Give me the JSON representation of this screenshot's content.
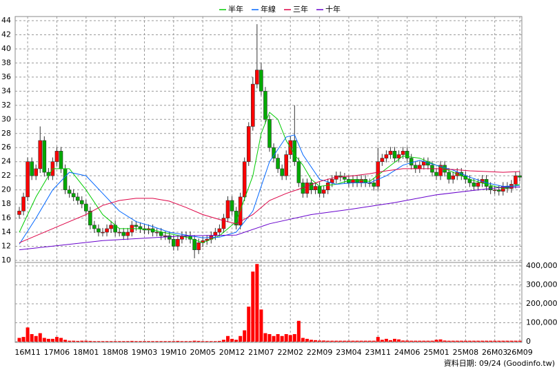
{
  "chart_data": {
    "type": "candlestick",
    "categories": [
      null,
      null,
      "16M11",
      null,
      null,
      null,
      null,
      null,
      null,
      "17M06",
      null,
      null,
      null,
      null,
      null,
      null,
      "18M01",
      null,
      null,
      null,
      null,
      null,
      null,
      "18M08",
      null,
      null,
      null,
      null,
      null,
      null,
      "19M03",
      null,
      null,
      null,
      null,
      null,
      null,
      "19M10",
      null,
      null,
      null,
      null,
      null,
      null,
      "20M05",
      null,
      null,
      null,
      null,
      null,
      null,
      "20M12",
      null,
      null,
      null,
      null,
      null,
      null,
      "21M07",
      null,
      null,
      null,
      null,
      null,
      null,
      "22M02",
      null,
      null,
      null,
      null,
      null,
      null,
      "22M09",
      null,
      null,
      null,
      null,
      null,
      null,
      "23M04",
      null,
      null,
      null,
      null,
      null,
      null,
      "23M11",
      null,
      null,
      null,
      null,
      null,
      null,
      "24M06",
      null,
      null,
      null,
      null,
      null,
      null,
      "25M01",
      null,
      null,
      null,
      null,
      null,
      null,
      "25M08",
      null,
      null,
      null,
      null,
      null,
      null,
      "26M03",
      null,
      null,
      null,
      null,
      null,
      "26M09"
    ],
    "open": [
      16.5,
      17,
      19,
      24,
      22,
      23,
      27,
      22.5,
      22,
      24,
      25.5,
      23,
      20,
      19.5,
      19,
      18.5,
      18,
      17,
      15,
      14.5,
      14,
      14,
      14.5,
      15,
      14,
      14,
      13.5,
      14,
      15,
      14.8,
      14.5,
      14.3,
      14.5,
      14,
      14,
      13.5,
      13.5,
      13,
      12,
      13,
      13.5,
      13.5,
      13,
      11.5,
      12.5,
      12.8,
      13,
      13.5,
      14,
      14.5,
      16,
      18.5,
      17,
      15,
      19,
      24,
      29,
      35,
      37,
      34,
      30,
      26,
      24.5,
      23,
      22,
      25,
      27,
      24,
      21,
      19.5,
      21,
      20,
      20.5,
      19.5,
      20,
      21,
      21.5,
      22,
      21.8,
      21.5,
      21,
      21.5,
      21,
      21.5,
      21,
      21,
      20.5,
      24,
      24.5,
      25,
      25.5,
      24.5,
      25,
      25.5,
      24.5,
      23.5,
      23,
      23.5,
      24,
      23.5,
      22.5,
      22,
      23.5,
      22.5,
      21.5,
      22,
      22.5,
      22,
      21.5,
      21,
      20.5,
      21,
      21.5,
      20.5,
      20,
      20,
      19.8,
      20.5,
      20.2,
      20.8,
      22
    ],
    "high": [
      17.6,
      19.6,
      24.6,
      24.6,
      23.6,
      29,
      27.6,
      23.1,
      24.6,
      26.1,
      26.1,
      23.6,
      20.6,
      20.1,
      19.6,
      19.1,
      18.6,
      17.6,
      15.6,
      15.1,
      14.6,
      15.1,
      15.6,
      15.6,
      14.6,
      14.6,
      14.6,
      15.6,
      15.6,
      15.4,
      15.1,
      15.1,
      15.1,
      14.6,
      14.6,
      14.1,
      14.1,
      13.6,
      13.6,
      14.1,
      14.1,
      14.1,
      13.6,
      13.1,
      13.4,
      13.6,
      14.1,
      14.6,
      15.1,
      16.6,
      19.1,
      19.1,
      17.6,
      19.6,
      24.6,
      29.6,
      36,
      43.5,
      38,
      34.6,
      30.6,
      26.6,
      25.1,
      23.6,
      25.6,
      27.6,
      32,
      24.6,
      21.6,
      21.6,
      21.6,
      21.1,
      21.1,
      20.6,
      21.6,
      22.1,
      22.6,
      22.6,
      22.4,
      22.1,
      22.1,
      22.1,
      22.1,
      22.1,
      21.6,
      21.6,
      26,
      25.1,
      25.6,
      26.1,
      26.1,
      25.6,
      26.1,
      26.1,
      25.1,
      24.1,
      24.1,
      24.6,
      24.6,
      24.1,
      23.1,
      24.1,
      24.1,
      23.1,
      22.6,
      23.1,
      23.1,
      22.6,
      22.1,
      21.6,
      21.6,
      22.1,
      22.1,
      21.1,
      20.6,
      20.6,
      21.1,
      21.1,
      21.4,
      22.6,
      22.6
    ],
    "low": [
      15.9,
      16.4,
      18.4,
      21.4,
      21.4,
      22.4,
      21.9,
      21.4,
      21.4,
      23.4,
      22.4,
      19.4,
      18.9,
      18.4,
      17.9,
      17.4,
      16.4,
      14.4,
      13.9,
      13.4,
      13.4,
      13.4,
      13.9,
      13.4,
      13.4,
      12.9,
      12.9,
      13.4,
      14.2,
      13.9,
      13.7,
      13.7,
      13.4,
      13.4,
      12.9,
      12.9,
      12.4,
      11.4,
      11.4,
      12.4,
      12.9,
      12.4,
      10.3,
      10.9,
      11.9,
      12.2,
      12.4,
      12.9,
      13.4,
      13.9,
      15.4,
      16.4,
      14.4,
      14.4,
      18.4,
      23.4,
      28.4,
      34.4,
      33.4,
      29.4,
      25.4,
      23.9,
      22.4,
      21.4,
      21.4,
      24.4,
      23.4,
      20.4,
      18.9,
      18.9,
      19.4,
      19.4,
      18.9,
      18.9,
      19.4,
      20.4,
      20.9,
      21.2,
      20.9,
      20.4,
      20.4,
      20.4,
      20.4,
      20.4,
      20.4,
      19.9,
      19.9,
      23.4,
      23.9,
      24.4,
      23.9,
      23.9,
      24.4,
      23.9,
      22.9,
      22.4,
      22.4,
      22.9,
      22.9,
      21.9,
      21.4,
      21.4,
      21.9,
      20.9,
      20.9,
      21.4,
      21.4,
      20.9,
      20.4,
      19.9,
      19.9,
      20.4,
      19.9,
      19.4,
      19.4,
      19.2,
      19.2,
      19.6,
      19.6,
      20.2,
      21.2
    ],
    "close": [
      17,
      19,
      24,
      22,
      23,
      27,
      22.5,
      22,
      24,
      25.5,
      23,
      20,
      19.5,
      19,
      18.5,
      18,
      17,
      15,
      14.5,
      14,
      14,
      14.5,
      15,
      14,
      14,
      13.5,
      14,
      15,
      14.8,
      14.5,
      14.3,
      14.5,
      14,
      14,
      13.5,
      13.5,
      13,
      12,
      13,
      13.5,
      13.5,
      13,
      11.5,
      12.5,
      12.8,
      13,
      13.5,
      14,
      14.5,
      16,
      18.5,
      17,
      15,
      19,
      24,
      29,
      35,
      37,
      34,
      30,
      26,
      24.5,
      23,
      22,
      25,
      27,
      24,
      21,
      19.5,
      21,
      20,
      20.5,
      19.5,
      20,
      21,
      21.5,
      22,
      21.8,
      21.5,
      21,
      21.5,
      21,
      21.5,
      21,
      21,
      20.5,
      24,
      24.5,
      25,
      25.5,
      24.5,
      25,
      25.5,
      24.5,
      23.5,
      23,
      23.5,
      24,
      23.5,
      22.5,
      22,
      23.5,
      22.5,
      21.5,
      22,
      22.5,
      22,
      21.5,
      21,
      20.5,
      21,
      21.5,
      20.5,
      20,
      20,
      19.8,
      20.5,
      20.2,
      20.8,
      22,
      21.8
    ],
    "up_color": "#ff0000",
    "down_color": "#00aa00",
    "ylim": [
      10,
      44
    ],
    "yticks": [
      10,
      12,
      14,
      16,
      18,
      20,
      22,
      24,
      26,
      28,
      30,
      32,
      34,
      36,
      38,
      40,
      42,
      44
    ],
    "volume": {
      "color": "#ff0000",
      "axis": "y2",
      "values": [
        20000,
        25000,
        75000,
        40000,
        30000,
        45000,
        20000,
        15000,
        15000,
        25000,
        20000,
        10000,
        5000,
        5000,
        4000,
        5000,
        5000,
        4000,
        3000,
        3000,
        3000,
        3000,
        3000,
        3000,
        3000,
        3000,
        3000,
        4000,
        3000,
        3000,
        3000,
        3000,
        3000,
        3000,
        3000,
        3000,
        3000,
        3000,
        4000,
        3000,
        3000,
        3000,
        5000,
        4000,
        3000,
        3000,
        3000,
        3000,
        4000,
        10000,
        30000,
        15000,
        10000,
        30000,
        60000,
        185000,
        370000,
        410000,
        170000,
        45000,
        40000,
        30000,
        40000,
        30000,
        40000,
        35000,
        40000,
        110000,
        20000,
        15000,
        10000,
        8000,
        6000,
        6000,
        5000,
        5000,
        5000,
        5000,
        5000,
        5000,
        5000,
        5000,
        5000,
        5000,
        5000,
        5000,
        25000,
        10000,
        15000,
        8000,
        15000,
        12000,
        6000,
        6000,
        5000,
        5000,
        5000,
        5000,
        5000,
        5000,
        10000,
        12000,
        6000,
        5000,
        5000,
        5000,
        5000,
        5000,
        5000,
        5000,
        5000,
        5000,
        5000,
        5000,
        5000,
        5000,
        5000,
        5000,
        5000,
        5000,
        5000
      ]
    },
    "y2lim": [
      0,
      400000
    ],
    "y2ticks": [
      0,
      {
        "value": 100000,
        "label": "100,000"
      },
      {
        "value": 200000,
        "label": "200,000"
      },
      {
        "value": 300000,
        "label": "300,000"
      },
      {
        "value": 400000,
        "label": "400,000"
      }
    ],
    "series": [
      {
        "name": "半年",
        "color": "#00cc00",
        "x": [
          0,
          4,
          8,
          12,
          16,
          20,
          24,
          28,
          32,
          36,
          40,
          44,
          48,
          52,
          56,
          58,
          60,
          62,
          64,
          66,
          68,
          70,
          72,
          76,
          80,
          84,
          88,
          92,
          96,
          100,
          104,
          108,
          112,
          116,
          120
        ],
        "values": [
          14,
          19,
          23,
          23,
          20,
          16.5,
          14.5,
          14.5,
          14.3,
          13.8,
          13.3,
          12.5,
          13.5,
          15.5,
          22,
          28,
          31,
          30,
          27,
          25,
          23.5,
          21.5,
          20.5,
          20.8,
          21.5,
          21.2,
          23,
          24.8,
          24.5,
          23.5,
          22.5,
          21.5,
          20.8,
          20.2,
          20.8
        ]
      },
      {
        "name": "年線",
        "color": "#0066ff",
        "x": [
          0,
          4,
          8,
          12,
          16,
          20,
          24,
          28,
          32,
          36,
          40,
          44,
          48,
          52,
          56,
          60,
          64,
          66,
          68,
          72,
          76,
          80,
          84,
          88,
          92,
          96,
          100,
          104,
          108,
          112,
          116,
          120
        ],
        "values": [
          12.3,
          16,
          20,
          22.5,
          22,
          19.5,
          17,
          15.5,
          14.8,
          14,
          13.6,
          13.2,
          13.3,
          14,
          17,
          24,
          27.5,
          27.8,
          25,
          21.5,
          20.8,
          21,
          21,
          22,
          23.5,
          24.2,
          23.5,
          22.8,
          21.8,
          21,
          20.5,
          20.6
        ]
      },
      {
        "name": "三年",
        "color": "#dd0044",
        "x": [
          0,
          4,
          8,
          12,
          16,
          20,
          24,
          28,
          32,
          36,
          40,
          44,
          48,
          52,
          56,
          60,
          64,
          68,
          72,
          76,
          80,
          84,
          88,
          92,
          96,
          100,
          104,
          108,
          112,
          116,
          120
        ],
        "values": [
          12.5,
          13.5,
          14.5,
          15.5,
          16.5,
          17.8,
          18.5,
          18.8,
          18.8,
          18.4,
          17.5,
          16.5,
          15.8,
          15.2,
          16.5,
          18.5,
          19.5,
          20.3,
          21.2,
          21.8,
          22,
          22.3,
          22.7,
          23,
          23,
          23,
          22.9,
          22.7,
          22.6,
          22.5,
          22.6
        ]
      },
      {
        "name": "十年",
        "color": "#6600cc",
        "x": [
          0,
          20,
          40,
          52,
          60,
          70,
          80,
          90,
          100,
          110,
          116,
          120
        ],
        "values": [
          11.5,
          12.8,
          13.5,
          13.6,
          15.2,
          16.5,
          17.3,
          18.2,
          19.3,
          20,
          20.4,
          20.4
        ]
      }
    ],
    "grid": true,
    "footer": "資料日期: 09/24 (Goodinfo.tw)"
  }
}
